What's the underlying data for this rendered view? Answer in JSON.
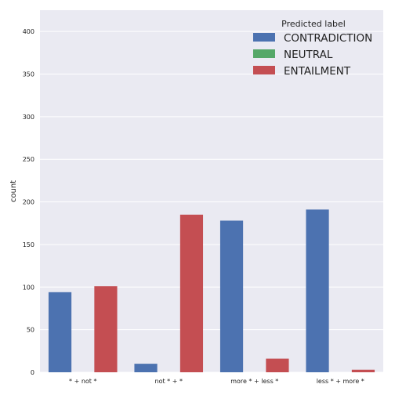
{
  "chart_data": {
    "type": "bar",
    "title": "",
    "xlabel": "",
    "ylabel": "count",
    "ylim": [
      0,
      425
    ],
    "yticks": [
      0,
      50,
      100,
      150,
      200,
      250,
      300,
      350,
      400
    ],
    "grid": true,
    "categories": [
      "* + not *",
      "not * + *",
      "more * + less *",
      "less * + more *"
    ],
    "legend_title": "Predicted label",
    "legend_position": "top-right",
    "series": [
      {
        "name": "CONTRADICTION",
        "color": "#4c72b0",
        "values": [
          94,
          10,
          178,
          191
        ]
      },
      {
        "name": "NEUTRAL",
        "color": "#55a868",
        "values": [
          0,
          0,
          0,
          0
        ]
      },
      {
        "name": "ENTAILMENT",
        "color": "#c44e52",
        "values": [
          101,
          185,
          16,
          3
        ]
      }
    ]
  },
  "colors": {
    "plot_background": "#eaeaf2",
    "grid": "#ffffff"
  }
}
